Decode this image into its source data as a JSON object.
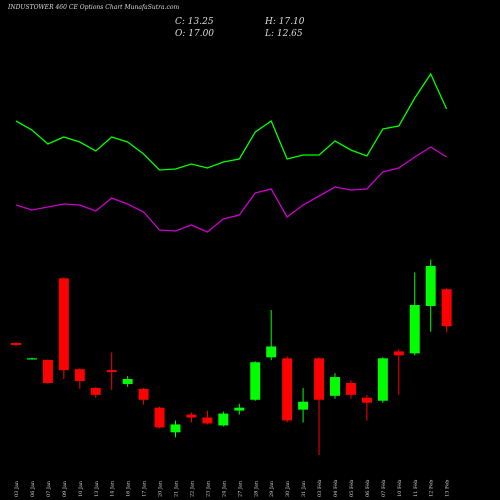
{
  "chart_data": {
    "type": "candlestick",
    "title": "INDUSTOWER 460 CE Options Chart MunafaSutra.com",
    "stats": [
      "C: 13.25",
      "H: 17.10",
      "O: 17.00",
      "L: 12.65"
    ],
    "categories": [
      "03 Jan",
      "06 Jan",
      "07 Jan",
      "09 Jan",
      "10 Jan",
      "13 Jan",
      "14 Jan",
      "16 Jan",
      "17 Jan",
      "20 Jan",
      "21 Jan",
      "22 Jan",
      "23 Jan",
      "24 Jan",
      "27 Jan",
      "28 Jan",
      "29 Jan",
      "30 Jan",
      "31 Jan",
      "03 Feb",
      "04 Feb",
      "05 Feb",
      "06 Feb",
      "07 Feb",
      "10 Feb",
      "11 Feb",
      "12 Feb",
      "13 Feb"
    ],
    "open": [
      11.55,
      10.0,
      9.83,
      18.1,
      8.9,
      7.0,
      8.8,
      7.4,
      6.9,
      5.0,
      2.5,
      4.3,
      4.0,
      3.2,
      4.7,
      5.8,
      10.1,
      10.0,
      4.8,
      10.0,
      6.2,
      7.5,
      6.0,
      5.7,
      10.7,
      10.5,
      15.3,
      17.0
    ],
    "high": [
      11.65,
      10.05,
      9.9,
      18.2,
      9.0,
      7.1,
      10.6,
      8.2,
      7.0,
      5.1,
      3.7,
      4.5,
      4.7,
      4.6,
      5.4,
      9.7,
      14.9,
      10.2,
      7.0,
      10.1,
      8.5,
      7.8,
      6.3,
      10.1,
      10.9,
      18.7,
      20.0,
      17.1
    ],
    "low": [
      11.2,
      9.95,
      7.4,
      7.9,
      6.9,
      6.0,
      6.8,
      7.1,
      5.3,
      2.9,
      2.0,
      3.5,
      3.3,
      3.1,
      4.3,
      5.7,
      9.8,
      3.5,
      3.5,
      0.2,
      5.9,
      5.9,
      3.7,
      5.5,
      6.3,
      10.3,
      12.7,
      12.65
    ],
    "close": [
      11.35,
      10.0,
      7.5,
      8.8,
      7.7,
      6.3,
      8.6,
      7.9,
      5.8,
      3.0,
      3.3,
      4.0,
      3.4,
      4.4,
      5.0,
      9.6,
      11.2,
      3.7,
      5.6,
      5.8,
      8.1,
      6.3,
      5.5,
      10.0,
      10.3,
      15.4,
      19.35,
      13.25
    ],
    "up_color": "#00ff00",
    "down_color": "#ff0000",
    "ylim": [
      0,
      46
    ],
    "y2lim": [
      0,
      100
    ],
    "series": [
      {
        "name": "MA fast",
        "color": "#00ff00",
        "axis": "y2",
        "values": [
          75.8,
          74,
          71.2,
          72.6,
          71.6,
          69.8,
          72.6,
          71.6,
          69.2,
          66,
          66.2,
          67.2,
          66.4,
          67.6,
          68.2,
          73.6,
          75.8,
          68.2,
          69,
          69,
          71.8,
          70,
          68.8,
          74.2,
          74.8,
          80.4,
          85.2,
          78.2
        ]
      },
      {
        "name": "MA slow",
        "color": "#cc00cc",
        "axis": "y2",
        "values": [
          59,
          58,
          58.6,
          59.2,
          59,
          57.8,
          60.4,
          59.2,
          57.6,
          54,
          53.8,
          55,
          53.6,
          56.2,
          57,
          61.4,
          62.2,
          56.6,
          59,
          60.8,
          62.6,
          62,
          62.2,
          65.6,
          66.4,
          68.6,
          70.6,
          68.6
        ]
      }
    ]
  }
}
